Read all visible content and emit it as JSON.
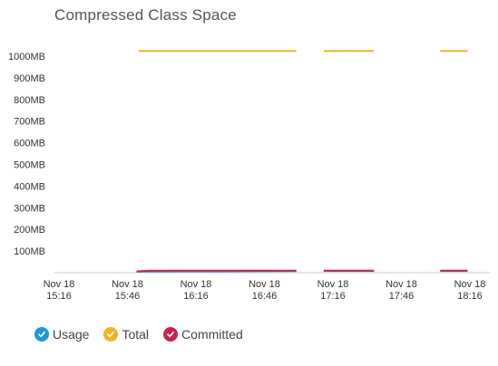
{
  "title": "Compressed Class Space",
  "chart_data": {
    "type": "line",
    "title": "Compressed Class Space",
    "xlabel": "",
    "ylabel": "",
    "ylim": [
      0,
      1000
    ],
    "y_unit": "MB",
    "y_ticks": [
      {
        "value": 100,
        "label": "100MB"
      },
      {
        "value": 200,
        "label": "200MB"
      },
      {
        "value": 300,
        "label": "300MB"
      },
      {
        "value": 400,
        "label": "400MB"
      },
      {
        "value": 500,
        "label": "500MB"
      },
      {
        "value": 600,
        "label": "600MB"
      },
      {
        "value": 700,
        "label": "700MB"
      },
      {
        "value": 800,
        "label": "800MB"
      },
      {
        "value": 900,
        "label": "900MB"
      },
      {
        "value": 1000,
        "label": "1000MB"
      }
    ],
    "x_ticks": [
      {
        "minutes": 0,
        "line1": "Nov 18",
        "line2": "15:16"
      },
      {
        "minutes": 30,
        "line1": "Nov 18",
        "line2": "15:46"
      },
      {
        "minutes": 60,
        "line1": "Nov 18",
        "line2": "16:16"
      },
      {
        "minutes": 90,
        "line1": "Nov 18",
        "line2": "16:46"
      },
      {
        "minutes": 120,
        "line1": "Nov 18",
        "line2": "17:16"
      },
      {
        "minutes": 150,
        "line1": "Nov 18",
        "line2": "17:46"
      },
      {
        "minutes": 180,
        "line1": "Nov 18",
        "line2": "18:16"
      }
    ],
    "series": [
      {
        "name": "Usage",
        "color": "#1a9ad6",
        "segments": [
          [
            [
              34,
              5
            ],
            [
              104,
              7
            ]
          ],
          [
            [
              116,
              8
            ],
            [
              138,
              8
            ]
          ],
          [
            [
              167,
              8
            ],
            [
              179,
              8
            ]
          ]
        ]
      },
      {
        "name": "Total",
        "color": "#f0b323",
        "segments": [
          [
            [
              35,
              1024
            ],
            [
              104,
              1024
            ]
          ],
          [
            [
              116,
              1024
            ],
            [
              138,
              1024
            ]
          ],
          [
            [
              167,
              1024
            ],
            [
              179,
              1024
            ]
          ]
        ]
      },
      {
        "name": "Committed",
        "color": "#c8234a",
        "segments": [
          [
            [
              34,
              6
            ],
            [
              40,
              9
            ],
            [
              104,
              9
            ]
          ],
          [
            [
              116,
              9
            ],
            [
              138,
              9
            ]
          ],
          [
            [
              167,
              9
            ],
            [
              179,
              9
            ]
          ]
        ]
      }
    ],
    "legend": "bottom-left",
    "grid": false
  },
  "legend_icons": {
    "check": "check-icon"
  }
}
